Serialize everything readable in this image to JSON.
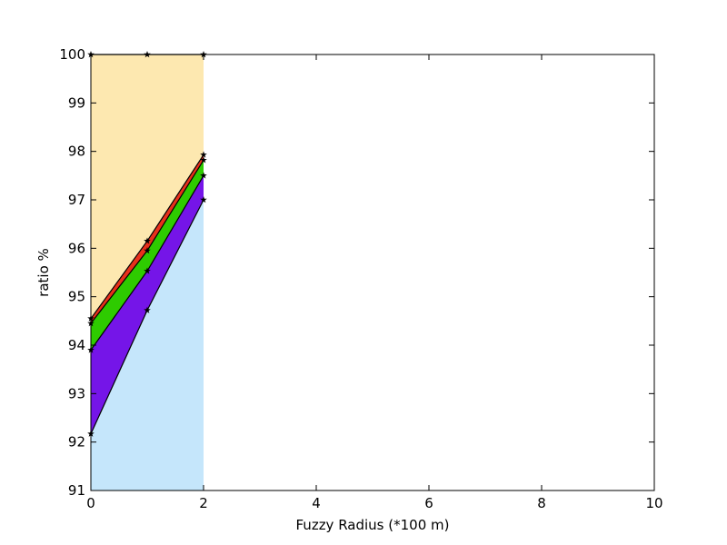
{
  "chart_data": {
    "type": "area",
    "stacked": true,
    "title": "",
    "xlabel": "Fuzzy Radius (*100 m)",
    "ylabel": "ratio %",
    "xlim": [
      0,
      10
    ],
    "ylim": [
      91,
      100
    ],
    "xticks": [
      0,
      2,
      4,
      6,
      8,
      10
    ],
    "yticks": [
      91,
      92,
      93,
      94,
      95,
      96,
      97,
      98,
      99,
      100
    ],
    "grid": false,
    "legend": "none",
    "x": [
      0,
      1,
      2
    ],
    "marker": "star",
    "series": [
      {
        "color": "#c5e6fb",
        "values": [
          92.17,
          94.72,
          97.0
        ]
      },
      {
        "color": "#7515e8",
        "values": [
          93.9,
          95.53,
          97.5
        ]
      },
      {
        "color": "#2ecb00",
        "values": [
          94.45,
          95.95,
          97.82
        ]
      },
      {
        "color": "#e8301b",
        "values": [
          94.55,
          96.15,
          97.93
        ]
      },
      {
        "color": "#fde8b0",
        "values": [
          100.0,
          100.0,
          100.0
        ]
      }
    ]
  }
}
